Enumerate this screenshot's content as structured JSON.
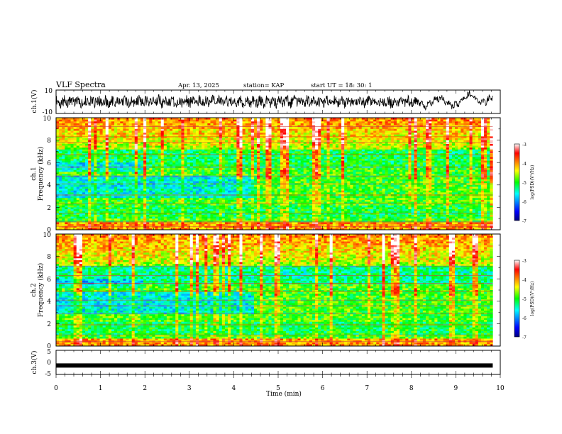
{
  "header": {
    "title": "VLF Spectra",
    "date": "Apr. 13, 2025",
    "station": "station= KAP",
    "start": "start  UT =   18: 30: 1"
  },
  "chart_data": [
    {
      "type": "line",
      "ylabel": "ch.1(V)",
      "ylim": [
        -10,
        10
      ],
      "yticks": [
        "10",
        "-10"
      ],
      "xlim": [
        0,
        10
      ]
    },
    {
      "type": "heatmap",
      "ylabel": "Frequency (kHz)",
      "ylabel_prefix": "ch.1",
      "ylim": [
        0,
        10
      ],
      "yticks": [
        "0",
        "2",
        "4",
        "6",
        "8",
        "10"
      ],
      "xlim": [
        0,
        10
      ],
      "data_end_min": 9.83,
      "colorbar": {
        "range": [
          -7,
          -3
        ],
        "ticks": [
          "-3",
          "-4",
          "-5",
          "-6",
          "-7"
        ],
        "label": "log(PSD)(V²/Hz)"
      }
    },
    {
      "type": "heatmap",
      "ylabel": "Frequency (kHz)",
      "ylabel_prefix": "ch.2",
      "ylim": [
        0,
        10
      ],
      "yticks": [
        "0",
        "2",
        "4",
        "6",
        "8",
        "10"
      ],
      "xlim": [
        0,
        10
      ],
      "data_end_min": 9.83,
      "colorbar": {
        "range": [
          -7,
          -3
        ],
        "ticks": [
          "-3",
          "-4",
          "-5",
          "-6",
          "-7"
        ],
        "label": "log(PSD)(V²/Hz)"
      }
    },
    {
      "type": "line",
      "ylabel": "ch.3(V)",
      "ylim": [
        -5,
        5
      ],
      "yticks": [
        "5",
        "0",
        "-5"
      ],
      "xlim": [
        0,
        10
      ],
      "constant_value": -1.3
    }
  ],
  "xaxis": {
    "label": "Time (min)",
    "ticks": [
      "0",
      "1",
      "2",
      "3",
      "4",
      "5",
      "6",
      "7",
      "8",
      "9",
      "10"
    ]
  },
  "colors": {
    "trace": "#000000",
    "frame": "#000000"
  }
}
